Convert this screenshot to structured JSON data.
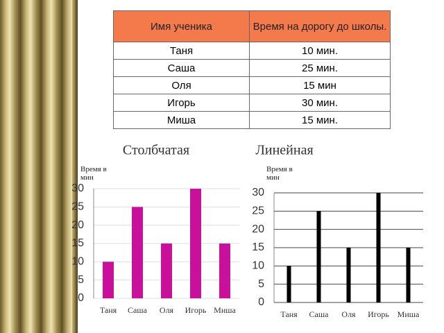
{
  "table": {
    "header": [
      "Имя  ученика",
      "Время на дорогу до школы."
    ],
    "rows": [
      [
        "Таня",
        "10 мин."
      ],
      [
        "Саша",
        "25 мин."
      ],
      [
        "Оля",
        "15 мин"
      ],
      [
        "Игорь",
        "30 мин."
      ],
      [
        "Миша",
        "15 мин."
      ]
    ]
  },
  "chart_data": [
    {
      "type": "bar",
      "title": "Столбчатая",
      "y_label": "Время в мин",
      "categories": [
        "Таня",
        "Саша",
        "Оля",
        "Игорь",
        "Миша"
      ],
      "values": [
        10,
        25,
        15,
        30,
        15
      ],
      "color": "#c8109a",
      "ylim": [
        0,
        30
      ],
      "yticks": [
        0,
        5,
        10,
        15,
        20,
        25,
        30
      ],
      "grid": true
    },
    {
      "type": "bar",
      "title": "Линейная",
      "y_label": "Время в мин",
      "categories": [
        "Таня",
        "Саша",
        "Оля",
        "Игорь",
        "Миша"
      ],
      "values": [
        10,
        25,
        15,
        30,
        15
      ],
      "color": "#000000",
      "ylim": [
        0,
        30
      ],
      "yticks": [
        0,
        5,
        10,
        15,
        20,
        25,
        30
      ],
      "grid": true
    }
  ]
}
